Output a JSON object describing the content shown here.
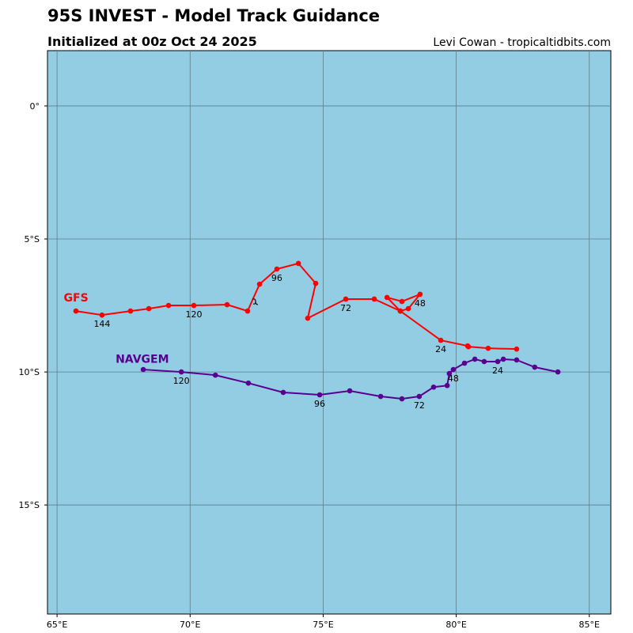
{
  "header": {
    "title": "95S INVEST - Model Track Guidance",
    "subtitle": "Initialized at 00z Oct 24 2025",
    "credit": "Levi Cowan - tropicaltidbits.com"
  },
  "chart_data": {
    "type": "line",
    "title": "95S INVEST - Model Track Guidance",
    "xlim": [
      64.64,
      85.81
    ],
    "ylim": [
      -19.1,
      2.08
    ],
    "grid": true,
    "background": "#93cde3",
    "x_ticks": [
      {
        "v": 65,
        "label": "65°E"
      },
      {
        "v": 70,
        "label": "70°E"
      },
      {
        "v": 75,
        "label": "75°E"
      },
      {
        "v": 80,
        "label": "80°E"
      },
      {
        "v": 85,
        "label": "85°E"
      }
    ],
    "y_ticks": [
      {
        "v": 0,
        "label": "0°"
      },
      {
        "v": -5,
        "label": "5°S"
      },
      {
        "v": -10,
        "label": "10°S"
      },
      {
        "v": -15,
        "label": "15°S"
      }
    ],
    "series": [
      {
        "name": "GFS",
        "color": "#ff0000",
        "label_pos": [
          65.25,
          -7.35
        ],
        "hours_step": 6,
        "lon": [
          82.27,
          81.2,
          80.46,
          80.43,
          79.42,
          77.9,
          77.4,
          77.96,
          78.64,
          78.2,
          77.9,
          76.92,
          75.85,
          74.42,
          74.72,
          74.07,
          73.26,
          72.61,
          72.16,
          71.39,
          70.14,
          69.19,
          68.45,
          67.76,
          66.69,
          65.71
        ],
        "lat": [
          -9.14,
          -9.11,
          -9.05,
          -9.02,
          -8.81,
          -7.71,
          -7.2,
          -7.35,
          -7.08,
          -7.62,
          -7.71,
          -7.26,
          -7.26,
          -7.98,
          -6.67,
          -5.92,
          -6.13,
          -6.7,
          -7.71,
          -7.47,
          -7.5,
          -7.5,
          -7.62,
          -7.71,
          -7.86,
          -7.71
        ],
        "labels": [
          {
            "i": 4,
            "text": "24"
          },
          {
            "i": 8,
            "text": "48"
          },
          {
            "i": 12,
            "text": "72"
          },
          {
            "i": 16,
            "text": "96"
          },
          {
            "i": 20,
            "text": "120"
          },
          {
            "i": 24,
            "text": "144"
          }
        ]
      },
      {
        "name": "NAVGEM",
        "color": "#5a0090",
        "label_pos": [
          67.2,
          -9.65
        ],
        "hours_step": 6,
        "lon": [
          83.82,
          82.95,
          82.27,
          81.77,
          81.56,
          81.05,
          80.7,
          80.31,
          79.89,
          79.74,
          79.66,
          79.15,
          78.61,
          77.96,
          77.16,
          76.0,
          74.87,
          73.5,
          72.19,
          70.95,
          69.67,
          68.24
        ],
        "lat": [
          -10.0,
          -9.82,
          -9.55,
          -9.52,
          -9.61,
          -9.61,
          -9.52,
          -9.67,
          -9.91,
          -10.06,
          -10.51,
          -10.57,
          -10.92,
          -11.01,
          -10.92,
          -10.71,
          -10.86,
          -10.77,
          -10.42,
          -10.12,
          -10.0,
          -9.91
        ],
        "labels": [
          {
            "i": 4,
            "text": "24"
          },
          {
            "i": 8,
            "text": "48"
          },
          {
            "i": 12,
            "text": "72"
          },
          {
            "i": 16,
            "text": "96"
          },
          {
            "i": 20,
            "text": "120"
          }
        ]
      }
    ]
  }
}
